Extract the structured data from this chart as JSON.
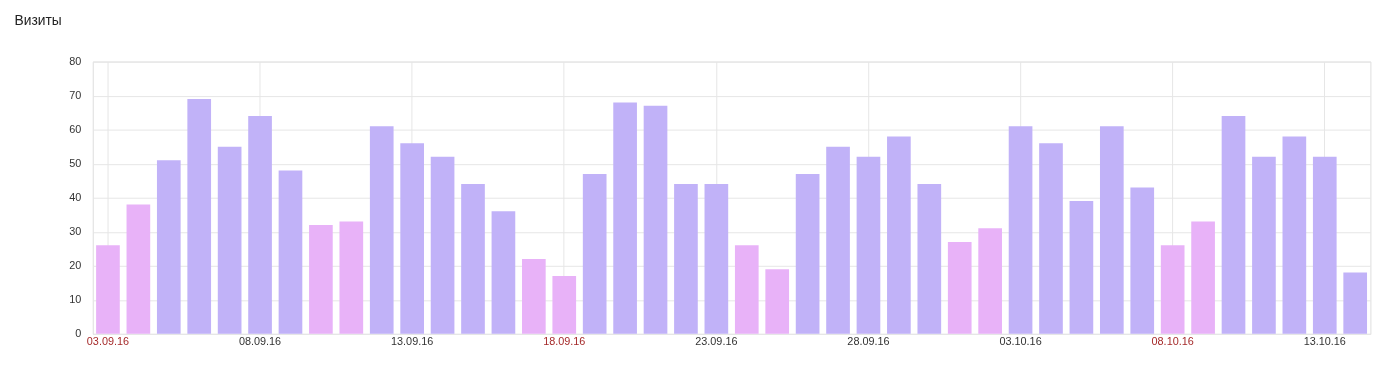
{
  "chart_data": {
    "type": "bar",
    "title": "Визиты",
    "categories": [
      "03.09.16",
      null,
      null,
      null,
      null,
      "08.09.16",
      null,
      null,
      null,
      null,
      "13.09.16",
      null,
      null,
      null,
      null,
      "18.09.16",
      null,
      null,
      null,
      null,
      "23.09.16",
      null,
      null,
      null,
      null,
      "28.09.16",
      null,
      null,
      null,
      null,
      "03.10.16",
      null,
      null,
      null,
      null,
      "08.10.16",
      null,
      null,
      null,
      null,
      "13.10.16",
      null
    ],
    "values": [
      26,
      38,
      51,
      69,
      55,
      64,
      48,
      32,
      33,
      61,
      56,
      52,
      44,
      36,
      22,
      17,
      47,
      68,
      67,
      44,
      44,
      26,
      19,
      47,
      55,
      52,
      58,
      44,
      27,
      31,
      61,
      56,
      39,
      61,
      43,
      26,
      33,
      64,
      52,
      58,
      52,
      18
    ],
    "colors": [
      "#e8b2f8",
      "#e8b2f8",
      "#c1b2f8",
      "#c1b2f8",
      "#c1b2f8",
      "#c1b2f8",
      "#c1b2f8",
      "#e8b2f8",
      "#e8b2f8",
      "#c1b2f8",
      "#c1b2f8",
      "#c1b2f8",
      "#c1b2f8",
      "#c1b2f8",
      "#e8b2f8",
      "#e8b2f8",
      "#c1b2f8",
      "#c1b2f8",
      "#c1b2f8",
      "#c1b2f8",
      "#c1b2f8",
      "#e8b2f8",
      "#e8b2f8",
      "#c1b2f8",
      "#c1b2f8",
      "#c1b2f8",
      "#c1b2f8",
      "#c1b2f8",
      "#e8b2f8",
      "#e8b2f8",
      "#c1b2f8",
      "#c1b2f8",
      "#c1b2f8",
      "#c1b2f8",
      "#c1b2f8",
      "#e8b2f8",
      "#e8b2f8",
      "#c1b2f8",
      "#c1b2f8",
      "#c1b2f8",
      "#c1b2f8",
      "#c1b2f8"
    ],
    "ylim": [
      0,
      80
    ],
    "yticks": [
      0,
      10,
      20,
      30,
      40,
      50,
      60,
      70,
      80
    ],
    "grid": true
  }
}
